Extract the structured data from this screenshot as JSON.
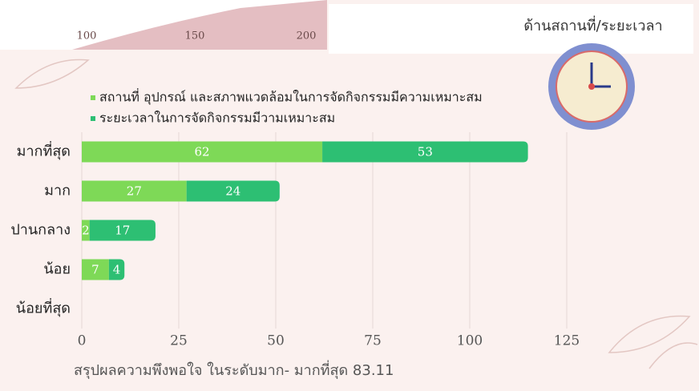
{
  "header_image": {
    "labels": [
      "100",
      "150",
      "200"
    ]
  },
  "chart_data": {
    "type": "stacked-barh",
    "title": "ด้านสถานที่/ระยะเวลา",
    "categories": [
      "มากที่สุด",
      "มาก",
      "ปานกลาง",
      "น้อย",
      "น้อยที่สุด"
    ],
    "series": [
      {
        "name": "สถานที่ อุปกรณ์ และสภาพแวดล้อมในการจัดกิจกรรมมีความเหมาะสม",
        "color": "#7ed957",
        "values": [
          62,
          27,
          2,
          7,
          null
        ]
      },
      {
        "name": "ระยะเวลาในการจัดกิจกรรมมีวามเหมาะสม",
        "color": "#2dbf73",
        "values": [
          53,
          24,
          17,
          4,
          null
        ]
      }
    ],
    "xlim": [
      0,
      125
    ],
    "xticks": [
      0,
      25,
      50,
      75,
      100,
      125
    ],
    "grid": true,
    "summary": "สรุปผลความพึงพอใจ ในระดับมาก- มากที่สุด  83.11"
  }
}
